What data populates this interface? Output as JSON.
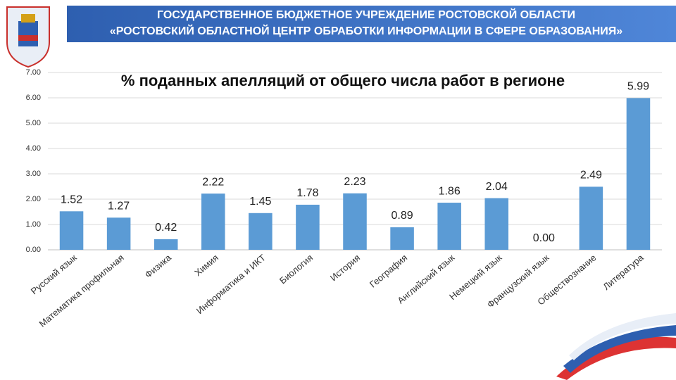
{
  "header": {
    "line1": "ГОСУДАРСТВЕННОЕ БЮДЖЕТНОЕ УЧРЕЖДЕНИЕ РОСТОВСКОЙ ОБЛАСТИ",
    "line2": "«РОСТОВСКИЙ ОБЛАСТНОЙ ЦЕНТР ОБРАБОТКИ ИНФОРМАЦИИ В СФЕРЕ ОБРАЗОВАНИЯ»"
  },
  "chart_data": {
    "type": "bar",
    "title": "% поданных апелляций от общего числа работ в регионе",
    "categories": [
      "Русский язык",
      "Математика профильная",
      "Физика",
      "Химия",
      "Информатика и ИКТ",
      "Биология",
      "История",
      "География",
      "Английский язык",
      "Немецкий язык",
      "Французский язык",
      "Обществознание",
      "Литература"
    ],
    "values": [
      1.52,
      1.27,
      0.42,
      2.22,
      1.45,
      1.78,
      2.23,
      0.89,
      1.86,
      2.04,
      0,
      2.49,
      5.99
    ],
    "value_labels": [
      "1.52",
      "1.27",
      "0.42",
      "2.22",
      "1.45",
      "1.78",
      "2.23",
      "0.89",
      "1.86",
      "2.04",
      "0.00",
      "2.49",
      "5.99"
    ],
    "color": "#5b9bd5",
    "ylim": [
      0,
      7
    ],
    "yticks": [
      {
        "value": 0,
        "label": "0.00"
      },
      {
        "value": 1,
        "label": "1.00"
      },
      {
        "value": 2,
        "label": "2.00"
      },
      {
        "value": 3,
        "label": "3.00"
      },
      {
        "value": 4,
        "label": "4.00"
      },
      {
        "value": 5,
        "label": "5.00"
      },
      {
        "value": 6,
        "label": "6.00"
      },
      {
        "value": 7,
        "label": "7.00"
      }
    ],
    "grid": true
  }
}
